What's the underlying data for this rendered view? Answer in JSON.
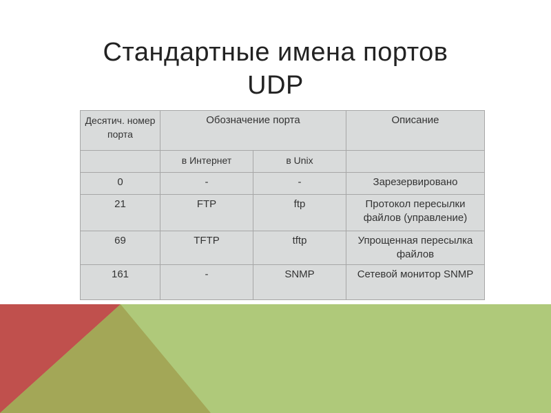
{
  "slide": {
    "title_line1": "Стандартные имена портов",
    "title_line2": "UDP"
  },
  "table": {
    "header": {
      "col1": "Десятич. номер порта",
      "col2": "Обозначение порта",
      "col3": "Описание",
      "sub1": "в Интернет",
      "sub2": "в Unix"
    },
    "rows": [
      {
        "num": "0",
        "internet": "-",
        "unix": "-",
        "desc": "Зарезервировано"
      },
      {
        "num": "21",
        "internet": "FTP",
        "unix": "ftp",
        "desc": "Протокол пересылки файлов (управление)"
      },
      {
        "num": "69",
        "internet": "TFTP",
        "unix": "tftp",
        "desc": "Упрощенная пересылка файлов"
      },
      {
        "num": "161",
        "internet": "-",
        "unix": "SNMP",
        "desc": "Сетевой монитор SNMP"
      }
    ]
  },
  "colors": {
    "red": "#c0504d",
    "olive": "#a3a757",
    "green": "#afc97a",
    "table_bg": "#d9dbdb"
  }
}
